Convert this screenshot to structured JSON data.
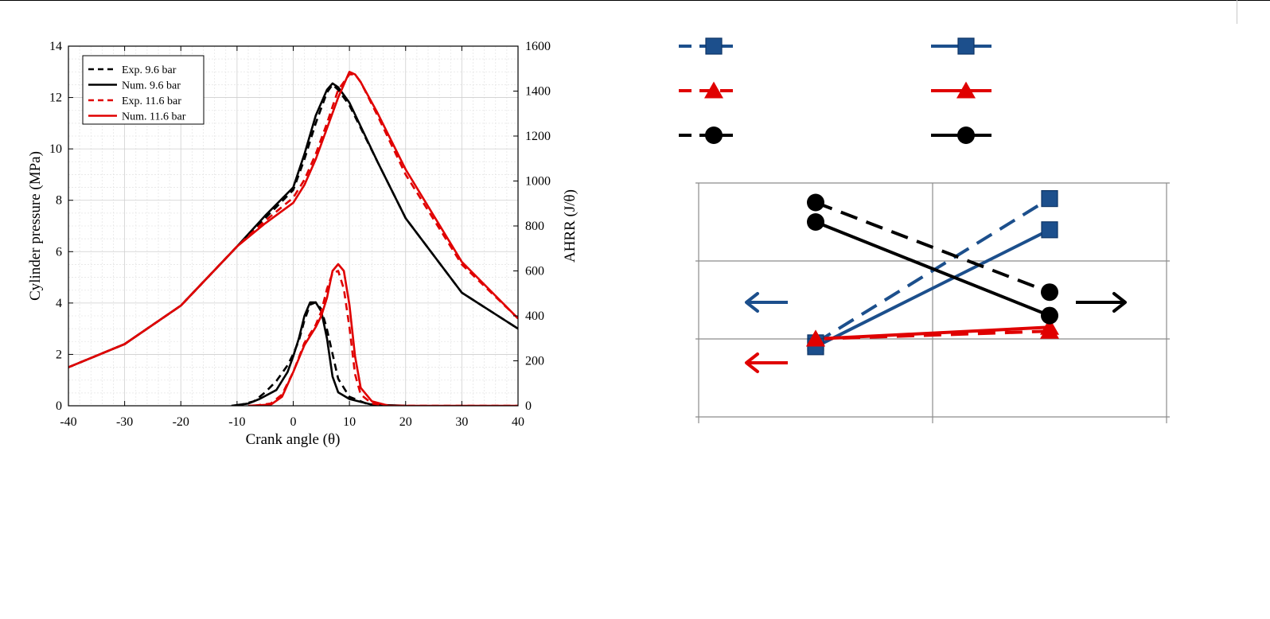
{
  "chart_data": [
    {
      "type": "line",
      "xlabel": "Crank angle (θ)",
      "ylabel_left": "Cylinder pressure (MPa)",
      "ylabel_right": "AHRR (J/θ)",
      "xlim": [
        -40,
        40
      ],
      "ylim_left": [
        0,
        14
      ],
      "ylim_right": [
        0,
        1600
      ],
      "x_ticks": [
        "-40",
        "-30",
        "-20",
        "-10",
        "0",
        "10",
        "20",
        "30",
        "40"
      ],
      "y_left_ticks": [
        "0",
        "2",
        "4",
        "6",
        "8",
        "10",
        "12",
        "14"
      ],
      "y_right_ticks": [
        "0",
        "200",
        "400",
        "600",
        "800",
        "1000",
        "1200",
        "1400",
        "1600"
      ],
      "grid": true,
      "legend_position": "top-left",
      "legend": [
        "Exp. 9.6 bar",
        "Num. 9.6 bar",
        "Exp. 11.6 bar",
        "Num. 11.6 bar"
      ],
      "series": [
        {
          "name": "Exp. 9.6 bar",
          "quantity": "pressure",
          "axis": "left",
          "color": "#000000",
          "style": "dashed",
          "x": [
            -40,
            -30,
            -20,
            -10,
            -5,
            0,
            2,
            4,
            6,
            7,
            8,
            10,
            15,
            20,
            30,
            40
          ],
          "y": [
            1.5,
            2.4,
            3.9,
            6.2,
            7.3,
            8.4,
            9.6,
            11.0,
            12.2,
            12.5,
            12.3,
            11.7,
            9.5,
            7.3,
            4.4,
            3.0
          ]
        },
        {
          "name": "Num. 9.6 bar",
          "quantity": "pressure",
          "axis": "left",
          "color": "#000000",
          "style": "solid",
          "x": [
            -40,
            -30,
            -20,
            -10,
            -5,
            0,
            2,
            4,
            6,
            7,
            8,
            10,
            15,
            20,
            30,
            40
          ],
          "y": [
            1.5,
            2.4,
            3.9,
            6.2,
            7.4,
            8.5,
            9.8,
            11.3,
            12.3,
            12.55,
            12.4,
            11.8,
            9.5,
            7.3,
            4.4,
            3.0
          ]
        },
        {
          "name": "Exp. 11.6 bar",
          "quantity": "pressure",
          "axis": "left",
          "color": "#e00000",
          "style": "dashed",
          "x": [
            -40,
            -30,
            -20,
            -10,
            -5,
            0,
            2,
            4,
            6,
            8,
            10,
            11,
            12,
            15,
            20,
            30,
            40
          ],
          "y": [
            1.5,
            2.4,
            3.9,
            6.2,
            7.2,
            8.1,
            8.8,
            9.8,
            11.0,
            12.3,
            12.9,
            12.9,
            12.6,
            11.3,
            9.0,
            5.5,
            3.4
          ]
        },
        {
          "name": "Num. 11.6 bar",
          "quantity": "pressure",
          "axis": "left",
          "color": "#e00000",
          "style": "solid",
          "x": [
            -40,
            -30,
            -20,
            -10,
            -5,
            0,
            2,
            4,
            6,
            8,
            10,
            11,
            12,
            15,
            20,
            30,
            40
          ],
          "y": [
            1.5,
            2.4,
            3.9,
            6.2,
            7.1,
            7.9,
            8.6,
            9.6,
            10.8,
            12.0,
            13.0,
            12.9,
            12.6,
            11.4,
            9.2,
            5.6,
            3.4
          ]
        },
        {
          "name": "Exp. 9.6 bar",
          "quantity": "ahrr",
          "axis": "right",
          "color": "#000000",
          "style": "dashed",
          "x": [
            -10,
            -7,
            -5,
            -3,
            -1,
            0,
            1,
            2,
            3,
            4,
            5,
            6,
            8,
            10,
            13,
            16,
            20
          ],
          "y": [
            0,
            20,
            60,
            110,
            180,
            230,
            290,
            380,
            450,
            460,
            430,
            340,
            120,
            40,
            10,
            0,
            0
          ]
        },
        {
          "name": "Num. 9.6 bar",
          "quantity": "ahrr",
          "axis": "right",
          "color": "#000000",
          "style": "solid",
          "x": [
            -11,
            -8,
            -6,
            -3,
            -1,
            0,
            1,
            2,
            3,
            4,
            5,
            6,
            7,
            8,
            10,
            14,
            20
          ],
          "y": [
            0,
            10,
            30,
            70,
            150,
            220,
            300,
            400,
            460,
            460,
            420,
            300,
            130,
            60,
            30,
            5,
            0
          ]
        },
        {
          "name": "Exp. 11.6 bar",
          "quantity": "ahrr",
          "axis": "right",
          "color": "#e00000",
          "style": "dashed",
          "x": [
            -7,
            -4,
            -2,
            0,
            2,
            4,
            5,
            6,
            7,
            8,
            9,
            10,
            11,
            12,
            14,
            17,
            40
          ],
          "y": [
            0,
            10,
            50,
            150,
            280,
            360,
            420,
            520,
            590,
            600,
            520,
            350,
            140,
            50,
            10,
            0,
            0
          ]
        },
        {
          "name": "Num. 11.6 bar",
          "quantity": "ahrr",
          "axis": "right",
          "color": "#e00000",
          "style": "solid",
          "x": [
            -8,
            -4,
            -2,
            0,
            2,
            4,
            5,
            6,
            7,
            8,
            9,
            10,
            11,
            12,
            14,
            17,
            40
          ],
          "y": [
            0,
            5,
            40,
            150,
            270,
            350,
            400,
            480,
            600,
            630,
            600,
            450,
            220,
            80,
            20,
            0,
            0
          ]
        }
      ]
    },
    {
      "type": "line",
      "categories": [
        "",
        ""
      ],
      "grid": true,
      "legend_position": "top",
      "series": [
        {
          "color": "#1c4f8c",
          "style": "dashed",
          "marker": "square",
          "values": [
            0.95,
            2.8
          ]
        },
        {
          "color": "#1c4f8c",
          "style": "solid",
          "marker": "square",
          "values": [
            0.9,
            2.4
          ]
        },
        {
          "color": "#e00000",
          "style": "dashed",
          "marker": "triangle",
          "values": [
            1.0,
            1.1
          ]
        },
        {
          "color": "#e00000",
          "style": "solid",
          "marker": "triangle",
          "values": [
            1.0,
            1.15
          ]
        },
        {
          "color": "#000000",
          "style": "dashed",
          "marker": "circle",
          "values": [
            2.75,
            1.6
          ]
        },
        {
          "color": "#000000",
          "style": "solid",
          "marker": "circle",
          "values": [
            2.5,
            1.3
          ]
        }
      ],
      "ylim": [
        0,
        3
      ],
      "annotations": [
        {
          "kind": "arrow",
          "direction": "left",
          "color": "#1c4f8c"
        },
        {
          "kind": "arrow",
          "direction": "left",
          "color": "#e00000"
        },
        {
          "kind": "arrow",
          "direction": "right",
          "color": "#000000"
        }
      ]
    }
  ]
}
